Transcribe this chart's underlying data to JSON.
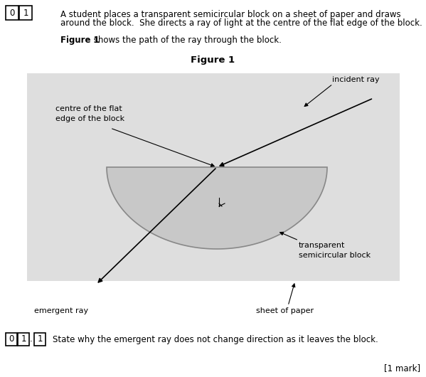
{
  "fig_width": 5.99,
  "fig_height": 5.3,
  "dpi": 100,
  "bg_color": "#ffffff",
  "paper_rect_color": "#dedede",
  "semi_block_color": "#c8c8c8",
  "semi_block_edge_color": "#888888",
  "question_text_line1": "A student places a transparent semicircular block on a sheet of paper and draws",
  "question_text_line2": "around the block.  She directs a ray of light at the centre of the flat edge of the block.",
  "figure_caption_bold": "Figure 1",
  "figure_caption_rest": " shows the path of the ray through the block.",
  "figure_title": "Figure 1",
  "label_incident_ray": "incident ray",
  "label_centre_flat": "centre of the flat\nedge of the block",
  "label_transparent": "transparent\nsemicircular block",
  "label_emergent": "emergent ray",
  "label_sheet": "sheet of paper",
  "subquestion_text": "State why the emergent ray does not change direction as it leaves the block.",
  "mark_text": "[1 mark]",
  "font_size_body": 8.5,
  "font_size_labels": 8.0,
  "font_size_figure_title": 9.5
}
